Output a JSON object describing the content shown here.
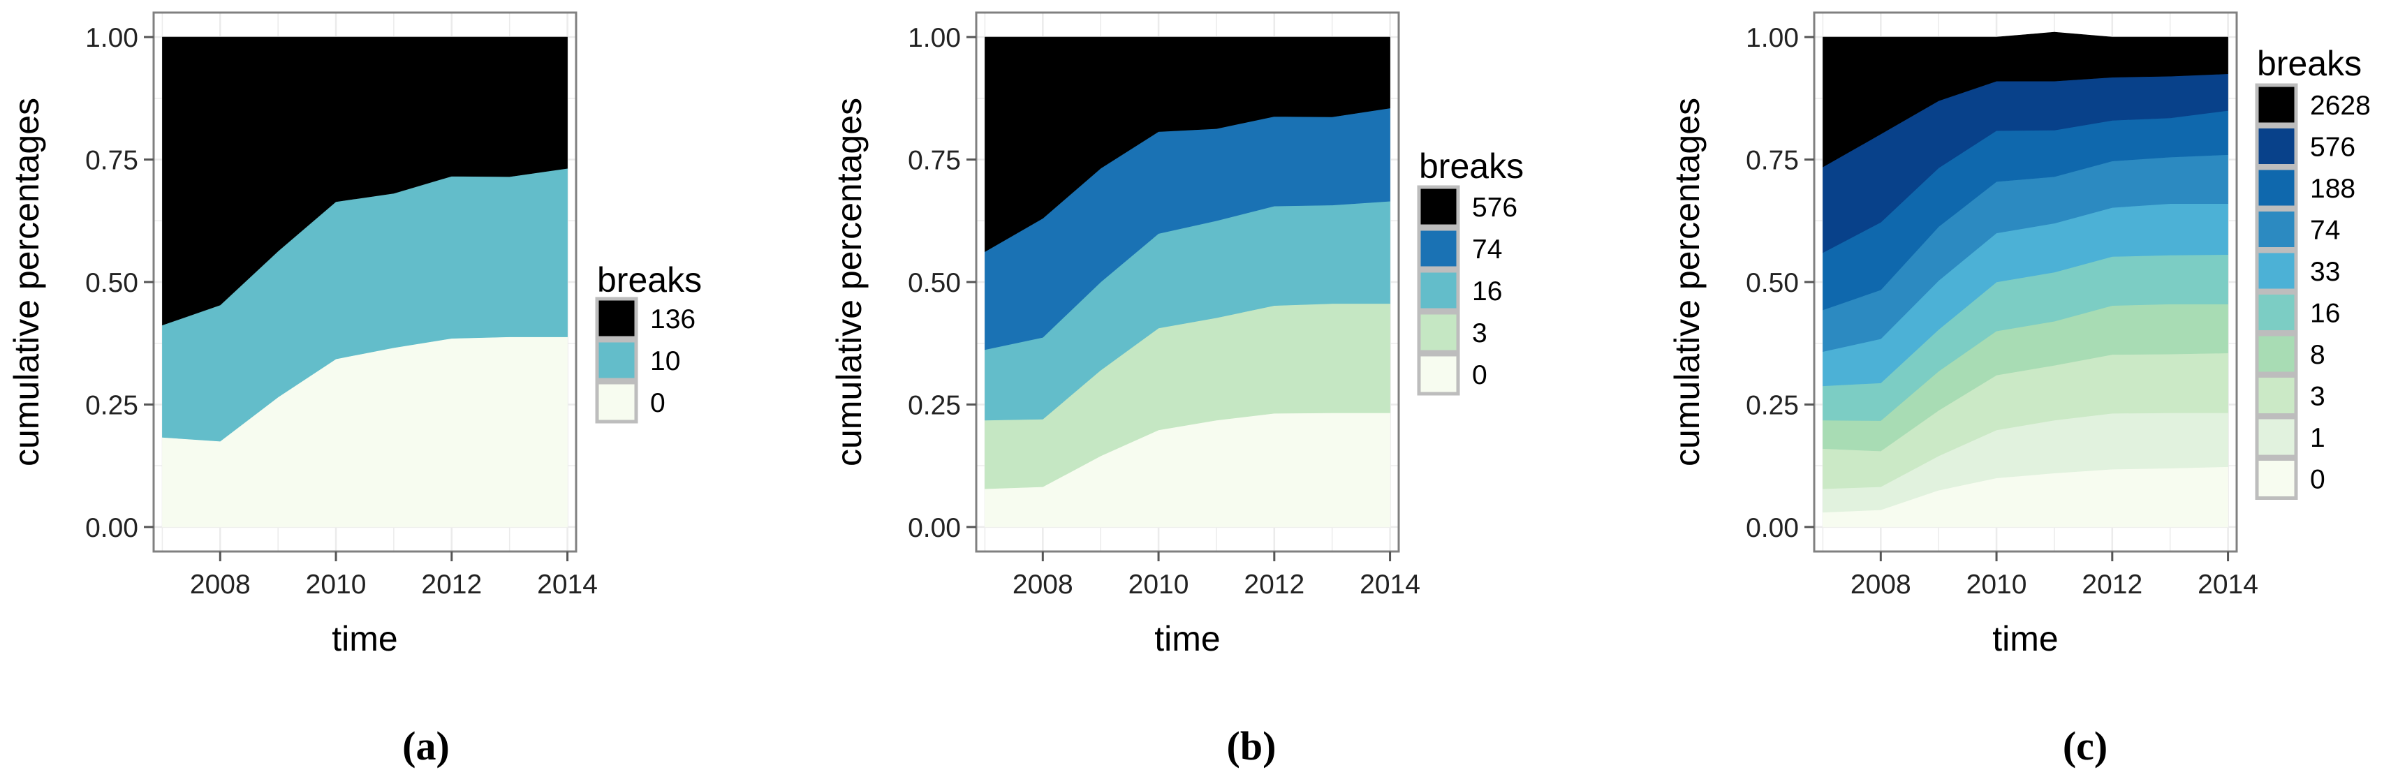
{
  "chart_data": [
    {
      "type": "area",
      "panel_label": "(a)",
      "xlabel": "time",
      "ylabel": "cumulative percentages",
      "x": [
        2007,
        2008,
        2009,
        2010,
        2011,
        2012,
        2013,
        2014
      ],
      "xlim": [
        2006.85,
        2014.15
      ],
      "ylim": [
        -0.05,
        1.05
      ],
      "x_ticks": [
        "2008",
        "2010",
        "2012",
        "2014"
      ],
      "y_ticks": [
        "0.00",
        "0.25",
        "0.50",
        "0.75",
        "1.00"
      ],
      "grid": true,
      "legend_title": "breaks",
      "legend_position": "right",
      "series": [
        {
          "name": "0",
          "color": "#f7fcf0",
          "values": [
            0.183,
            0.175,
            0.265,
            0.343,
            0.366,
            0.385,
            0.388,
            0.388
          ]
        },
        {
          "name": "10",
          "color": "#63bdca",
          "values": [
            0.229,
            0.278,
            0.298,
            0.321,
            0.315,
            0.331,
            0.327,
            0.344
          ]
        },
        {
          "name": "136",
          "color": "#000000",
          "values": [
            0.588,
            0.547,
            0.437,
            0.336,
            0.319,
            0.284,
            0.285,
            0.268
          ]
        }
      ]
    },
    {
      "type": "area",
      "panel_label": "(b)",
      "xlabel": "time",
      "ylabel": "cumulative percentages",
      "x": [
        2007,
        2008,
        2009,
        2010,
        2011,
        2012,
        2013,
        2014
      ],
      "xlim": [
        2006.85,
        2014.15
      ],
      "ylim": [
        -0.05,
        1.05
      ],
      "x_ticks": [
        "2008",
        "2010",
        "2012",
        "2014"
      ],
      "y_ticks": [
        "0.00",
        "0.25",
        "0.50",
        "0.75",
        "1.00"
      ],
      "grid": true,
      "legend_title": "breaks",
      "legend_position": "right",
      "series": [
        {
          "name": "0",
          "color": "#f7fcf0",
          "values": [
            0.078,
            0.082,
            0.145,
            0.198,
            0.218,
            0.232,
            0.233,
            0.233
          ]
        },
        {
          "name": "3",
          "color": "#c5e7c3",
          "values": [
            0.14,
            0.138,
            0.175,
            0.208,
            0.209,
            0.22,
            0.223,
            0.223
          ]
        },
        {
          "name": "16",
          "color": "#63bdca",
          "values": [
            0.144,
            0.167,
            0.18,
            0.193,
            0.198,
            0.203,
            0.201,
            0.209
          ]
        },
        {
          "name": "74",
          "color": "#1a72b4",
          "values": [
            0.2,
            0.243,
            0.232,
            0.208,
            0.188,
            0.183,
            0.18,
            0.19
          ]
        },
        {
          "name": "576",
          "color": "#000000",
          "values": [
            0.438,
            0.37,
            0.268,
            0.193,
            0.187,
            0.162,
            0.163,
            0.145
          ]
        }
      ]
    },
    {
      "type": "area",
      "panel_label": "(c)",
      "xlabel": "time",
      "ylabel": "cumulative percentages",
      "x": [
        2007,
        2008,
        2009,
        2010,
        2011,
        2012,
        2013,
        2014
      ],
      "xlim": [
        2006.85,
        2014.15
      ],
      "ylim": [
        -0.05,
        1.05
      ],
      "x_ticks": [
        "2008",
        "2010",
        "2012",
        "2014"
      ],
      "y_ticks": [
        "0.00",
        "0.25",
        "0.50",
        "0.75",
        "1.00"
      ],
      "grid": true,
      "legend_title": "breaks",
      "legend_position": "right",
      "series": [
        {
          "name": "0",
          "color": "#f7fcf0",
          "values": [
            0.03,
            0.035,
            0.075,
            0.1,
            0.11,
            0.118,
            0.12,
            0.123
          ]
        },
        {
          "name": "1",
          "color": "#e1f2de",
          "values": [
            0.048,
            0.047,
            0.07,
            0.098,
            0.108,
            0.114,
            0.113,
            0.11
          ]
        },
        {
          "name": "3",
          "color": "#cbe9c6",
          "values": [
            0.082,
            0.073,
            0.093,
            0.112,
            0.112,
            0.12,
            0.12,
            0.122
          ]
        },
        {
          "name": "8",
          "color": "#a8dcb4",
          "values": [
            0.058,
            0.062,
            0.08,
            0.09,
            0.09,
            0.1,
            0.102,
            0.1
          ]
        },
        {
          "name": "16",
          "color": "#7ccdc4",
          "values": [
            0.07,
            0.077,
            0.085,
            0.1,
            0.1,
            0.1,
            0.1,
            0.101
          ]
        },
        {
          "name": "33",
          "color": "#4cb1d6",
          "values": [
            0.07,
            0.09,
            0.1,
            0.1,
            0.1,
            0.1,
            0.105,
            0.104
          ]
        },
        {
          "name": "74",
          "color": "#2c8ac1",
          "values": [
            0.085,
            0.1,
            0.11,
            0.105,
            0.095,
            0.095,
            0.095,
            0.1
          ]
        },
        {
          "name": "188",
          "color": "#0f68ad",
          "values": [
            0.117,
            0.138,
            0.12,
            0.104,
            0.095,
            0.083,
            0.08,
            0.09
          ]
        },
        {
          "name": "576",
          "color": "#08418a",
          "values": [
            0.175,
            0.18,
            0.137,
            0.101,
            0.1,
            0.088,
            0.085,
            0.075
          ]
        },
        {
          "name": "2628",
          "color": "#000000",
          "values": [
            0.265,
            0.198,
            0.13,
            0.09,
            0.1,
            0.082,
            0.08,
            0.075
          ]
        }
      ]
    }
  ]
}
